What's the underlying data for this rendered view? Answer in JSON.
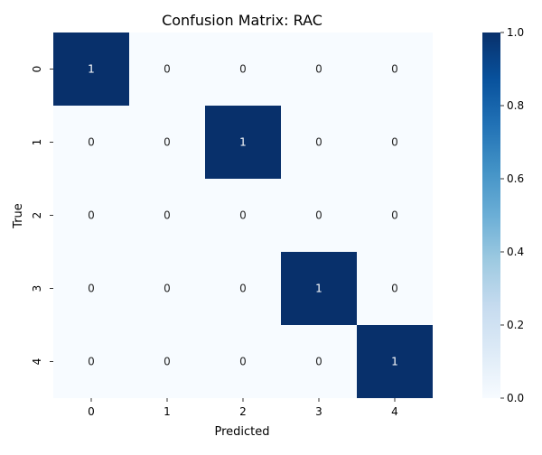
{
  "chart_data": {
    "type": "heatmap",
    "title": "Confusion Matrix: RAC",
    "xlabel": "Predicted",
    "ylabel": "True",
    "x_categories": [
      "0",
      "1",
      "2",
      "3",
      "4"
    ],
    "y_categories": [
      "0",
      "1",
      "2",
      "3",
      "4"
    ],
    "values": [
      [
        1,
        0,
        0,
        0,
        0
      ],
      [
        0,
        0,
        1,
        0,
        0
      ],
      [
        0,
        0,
        0,
        0,
        0
      ],
      [
        0,
        0,
        0,
        1,
        0
      ],
      [
        0,
        0,
        0,
        0,
        1
      ]
    ],
    "colormap": "Blues",
    "colorbar": {
      "range": [
        0.0,
        1.0
      ],
      "ticks": [
        "0.0",
        "0.2",
        "0.4",
        "0.6",
        "0.8",
        "1.0"
      ]
    },
    "low_color": "#f7fbff",
    "high_color": "#08306b",
    "annotation_color_low": "#262626",
    "annotation_color_high": "#ffffff"
  }
}
